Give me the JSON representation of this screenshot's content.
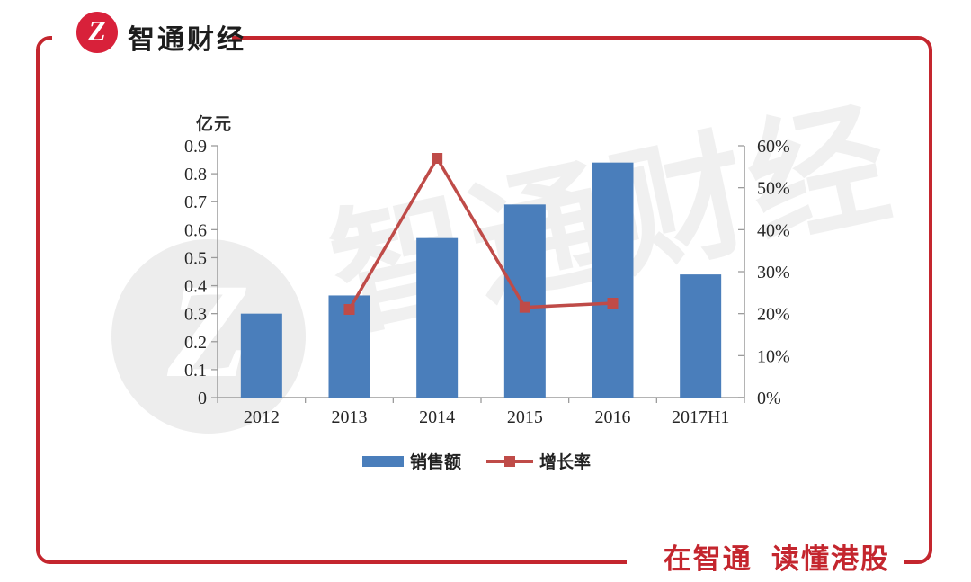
{
  "brand": {
    "name": "智通财经",
    "logo_glyph": "Z"
  },
  "tagline": "在智通  读懂港股",
  "watermark": {
    "circle_glyph": "Z",
    "text": "智通财经"
  },
  "colors": {
    "frame_red": "#c4262e",
    "logo_red": "#d8213a",
    "bar_blue": "#4a7ebb",
    "line_red": "#bf4b48",
    "axis_gray": "#9b9b9b"
  },
  "chart_data": {
    "type": "bar+line",
    "categories": [
      "2012",
      "2013",
      "2014",
      "2015",
      "2016",
      "2017H1"
    ],
    "series": [
      {
        "name": "销售额",
        "type": "bar",
        "axis": "left",
        "unit": "亿元",
        "color": "#4a7ebb",
        "values": [
          0.3,
          0.365,
          0.57,
          0.69,
          0.84,
          0.44
        ]
      },
      {
        "name": "增长率",
        "type": "line",
        "axis": "right",
        "unit": "%",
        "color": "#bf4b48",
        "values": [
          null,
          21,
          57,
          21.5,
          22.5,
          null
        ]
      }
    ],
    "left_axis": {
      "title": "亿元",
      "min": 0,
      "max": 0.9,
      "step": 0.1,
      "tick_labels": [
        "0",
        "0.1",
        "0.2",
        "0.3",
        "0.4",
        "0.5",
        "0.6",
        "0.7",
        "0.8",
        "0.9"
      ]
    },
    "right_axis": {
      "min": 0,
      "max": 60,
      "step": 10,
      "tick_labels": [
        "0%",
        "10%",
        "20%",
        "30%",
        "40%",
        "50%",
        "60%"
      ]
    },
    "legend": {
      "position": "bottom",
      "items": [
        {
          "label": "销售额",
          "marker": "bar"
        },
        {
          "label": "增长率",
          "marker": "line"
        }
      ]
    },
    "grid": false
  }
}
